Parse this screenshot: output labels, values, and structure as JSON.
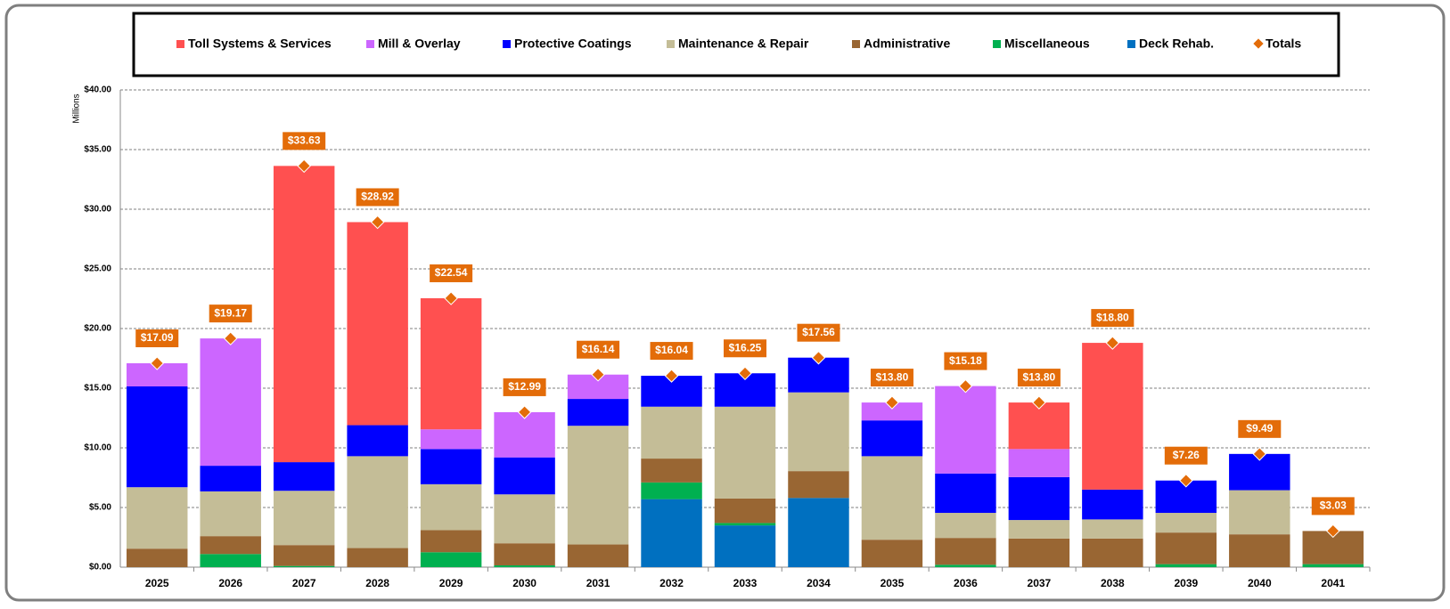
{
  "chart_data": {
    "type": "stacked-bar",
    "y_label": "Millions",
    "categories": [
      "2025",
      "2026",
      "2027",
      "2028",
      "2029",
      "2030",
      "2031",
      "2032",
      "2033",
      "2034",
      "2035",
      "2036",
      "2037",
      "2038",
      "2039",
      "2040",
      "2041"
    ],
    "series": [
      {
        "name": "Deck Rehab.",
        "color": "#0070c0",
        "values": [
          0,
          0,
          0,
          0,
          0,
          0,
          0,
          5.7,
          3.5,
          5.8,
          0,
          0,
          0,
          0,
          0,
          0,
          0
        ]
      },
      {
        "name": "Miscellaneous",
        "color": "#00b050",
        "values": [
          0,
          1.1,
          0.1,
          0,
          1.25,
          0.15,
          0,
          1.4,
          0.2,
          0,
          0,
          0.2,
          0,
          0,
          0.25,
          0,
          0.25
        ]
      },
      {
        "name": "Administrative",
        "color": "#996633",
        "values": [
          1.55,
          1.5,
          1.75,
          1.6,
          1.85,
          1.85,
          1.9,
          2.0,
          2.05,
          2.25,
          2.3,
          2.25,
          2.4,
          2.4,
          2.65,
          2.75,
          2.78
        ]
      },
      {
        "name": "Maintenance & Repair",
        "color": "#c4bd97",
        "values": [
          5.15,
          3.75,
          4.55,
          7.7,
          3.85,
          4.1,
          9.95,
          4.35,
          7.7,
          6.6,
          7.0,
          2.1,
          1.55,
          1.6,
          1.65,
          3.7,
          0
        ]
      },
      {
        "name": "Protective Coatings",
        "color": "#0000ff",
        "values": [
          8.45,
          2.15,
          2.4,
          2.6,
          2.95,
          3.1,
          2.25,
          2.59,
          2.8,
          2.91,
          3.0,
          3.3,
          3.6,
          2.5,
          2.71,
          3.04,
          0
        ]
      },
      {
        "name": "Mill & Overlay",
        "color": "#cc66ff",
        "values": [
          1.94,
          10.67,
          0,
          0,
          1.65,
          3.79,
          2.04,
          0,
          0,
          0,
          1.5,
          7.33,
          2.35,
          0,
          0,
          0,
          0
        ]
      },
      {
        "name": "Toll Systems & Services",
        "color": "#ff5050",
        "values": [
          0,
          0,
          24.83,
          17.02,
          10.99,
          0,
          0,
          0,
          0,
          0,
          0,
          0,
          3.9,
          12.3,
          0,
          0,
          0
        ]
      }
    ],
    "totals": {
      "name": "Totals",
      "color": "#e36c09",
      "values": [
        17.09,
        19.17,
        33.63,
        28.92,
        22.54,
        12.99,
        16.14,
        16.04,
        16.25,
        17.56,
        13.8,
        15.18,
        13.8,
        18.8,
        7.26,
        9.49,
        3.03
      ],
      "value_labels": [
        "$17.09",
        "$19.17",
        "$33.63",
        "$28.92",
        "$22.54",
        "$12.99",
        "$16.14",
        "$16.04",
        "$16.25",
        "$17.56",
        "$13.80",
        "$15.18",
        "$13.80",
        "$18.80",
        "$7.26",
        "$9.49",
        "$3.03"
      ]
    },
    "ylim": [
      0,
      40
    ],
    "yticks": [
      {
        "value": 0,
        "label": "$0.00"
      },
      {
        "value": 5,
        "label": "$5.00"
      },
      {
        "value": 10,
        "label": "$10.00"
      },
      {
        "value": 15,
        "label": "$15.00"
      },
      {
        "value": 20,
        "label": "$20.00"
      },
      {
        "value": 25,
        "label": "$25.00"
      },
      {
        "value": 30,
        "label": "$30.00"
      },
      {
        "value": 35,
        "label": "$35.00"
      },
      {
        "value": 40,
        "label": "$40.00"
      }
    ],
    "grid": true,
    "legend_order": [
      6,
      5,
      4,
      3,
      2,
      1,
      0
    ]
  }
}
